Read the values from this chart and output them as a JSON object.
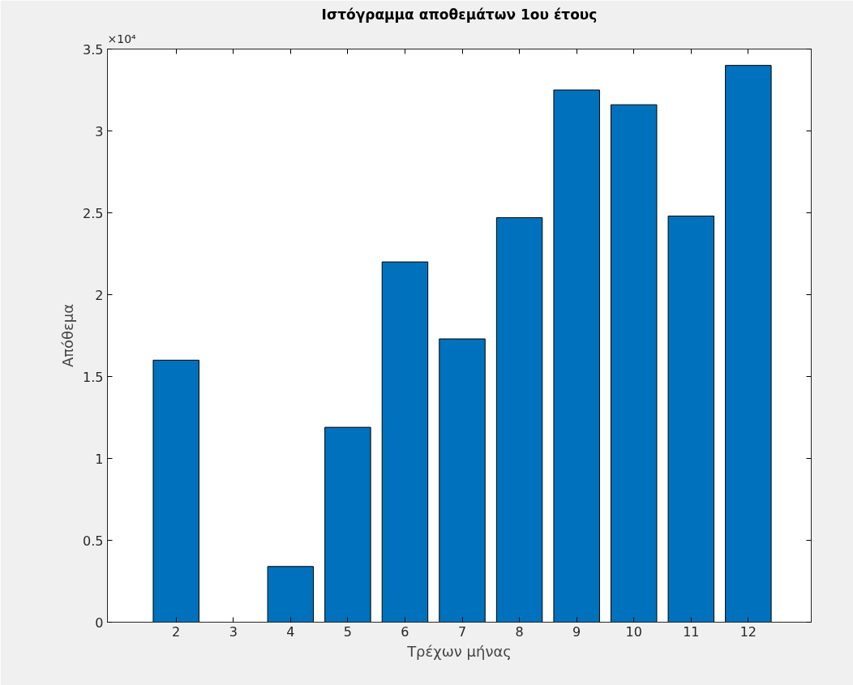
{
  "chart_data": {
    "type": "bar",
    "title": "Ιστόγραμμα αποθεμάτων 1ου έτους",
    "xlabel": "Τρέχων μήνας",
    "ylabel": "Απόθεμα",
    "x": [
      2,
      3,
      4,
      5,
      6,
      7,
      8,
      9,
      10,
      11,
      12
    ],
    "series": [
      {
        "color": "#0072bd",
        "values": [
          1.6,
          0,
          0.34,
          1.19,
          2.2,
          1.73,
          2.47,
          3.25,
          3.16,
          2.48,
          3.4
        ]
      }
    ],
    "xlim": [
      0.8,
      13.1
    ],
    "xticks": [
      2,
      3,
      4,
      5,
      6,
      7,
      8,
      9,
      10,
      11,
      12
    ],
    "ylim": [
      0,
      3.5
    ],
    "yticks": [
      0,
      0.5,
      1,
      1.5,
      2,
      2.5,
      3,
      3.5
    ],
    "annotations": [
      "×10⁴"
    ],
    "grid": false
  }
}
